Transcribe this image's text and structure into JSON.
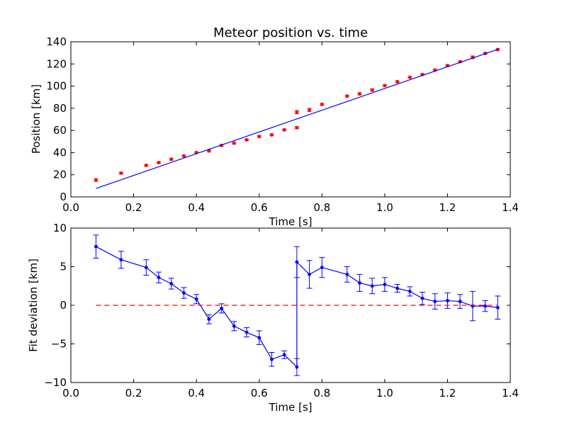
{
  "chart_data": [
    {
      "type": "scatter",
      "title": "Meteor position vs. time",
      "xlabel": "Time [s]",
      "ylabel": "Position [km]",
      "xlim": [
        0.0,
        1.4
      ],
      "ylim": [
        0,
        140
      ],
      "xticks": [
        "0.0",
        "0.2",
        "0.4",
        "0.6",
        "0.8",
        "1.0",
        "1.2",
        "1.4"
      ],
      "yticks": [
        "0",
        "20",
        "40",
        "60",
        "80",
        "100",
        "120",
        "140"
      ],
      "xtick_values": [
        0.0,
        0.2,
        0.4,
        0.6,
        0.8,
        1.0,
        1.2,
        1.4
      ],
      "ytick_values": [
        0,
        20,
        40,
        60,
        80,
        100,
        120,
        140
      ],
      "grid": false,
      "series": [
        {
          "kind": "errorbar-points",
          "color": "#ff0000",
          "x": [
            0.08,
            0.16,
            0.24,
            0.28,
            0.32,
            0.36,
            0.4,
            0.44,
            0.48,
            0.52,
            0.56,
            0.6,
            0.64,
            0.68,
            0.72,
            0.72,
            0.76,
            0.8,
            0.88,
            0.92,
            0.96,
            1.0,
            1.04,
            1.08,
            1.12,
            1.16,
            1.2,
            1.24,
            1.28,
            1.32,
            1.36
          ],
          "y": [
            15.2,
            21.5,
            28.5,
            31.0,
            34.0,
            37.0,
            40.0,
            41.5,
            46.5,
            48.5,
            51.5,
            54.5,
            56.0,
            60.5,
            62.5,
            76.5,
            78.5,
            83.5,
            91.0,
            93.0,
            96.5,
            100.5,
            104.0,
            108.0,
            110.5,
            114.5,
            118.5,
            122.0,
            126.0,
            129.5,
            133.0
          ],
          "err": [
            1.2,
            0.8,
            0.8,
            0.7,
            0.8,
            0.7,
            0.6,
            0.8,
            0.7,
            0.7,
            0.7,
            0.8,
            0.8,
            0.7,
            1.0,
            1.5,
            1.4,
            0.9,
            0.8,
            1.0,
            1.0,
            0.8,
            0.7,
            0.6,
            0.6,
            0.8,
            0.8,
            0.7,
            1.2,
            0.8,
            1.0
          ]
        },
        {
          "kind": "line",
          "color": "#0000ff",
          "x": [
            0.08,
            1.36
          ],
          "y": [
            7.6,
            133.2
          ]
        }
      ]
    },
    {
      "type": "line",
      "title": "",
      "xlabel": "Time [s]",
      "ylabel": "Fit deviation [km]",
      "xlim": [
        0.0,
        1.4
      ],
      "ylim": [
        -10,
        10
      ],
      "xticks": [
        "0.0",
        "0.2",
        "0.4",
        "0.6",
        "0.8",
        "1.0",
        "1.2",
        "1.4"
      ],
      "yticks": [
        "10",
        "5",
        "0",
        "−5",
        "−10"
      ],
      "xtick_values": [
        0.0,
        0.2,
        0.4,
        0.6,
        0.8,
        1.0,
        1.2,
        1.4
      ],
      "ytick_values": [
        10,
        5,
        0,
        -5,
        -10
      ],
      "grid": false,
      "series": [
        {
          "kind": "errorbar-line",
          "color": "#0000ff",
          "x": [
            0.08,
            0.16,
            0.24,
            0.28,
            0.32,
            0.36,
            0.4,
            0.44,
            0.48,
            0.52,
            0.56,
            0.6,
            0.64,
            0.68,
            0.72,
            0.72,
            0.76,
            0.8,
            0.88,
            0.92,
            0.96,
            1.0,
            1.04,
            1.08,
            1.12,
            1.16,
            1.2,
            1.24,
            1.28,
            1.32,
            1.36
          ],
          "y": [
            7.6,
            5.9,
            4.9,
            3.6,
            2.8,
            1.6,
            0.8,
            -1.8,
            -0.4,
            -2.7,
            -3.5,
            -4.2,
            -7.0,
            -6.4,
            -8.0,
            5.6,
            4.0,
            4.9,
            4.0,
            2.9,
            2.5,
            2.7,
            2.2,
            1.8,
            0.9,
            0.5,
            0.6,
            0.5,
            -0.1,
            -0.1,
            -0.3
          ],
          "err": [
            1.5,
            1.1,
            1.0,
            0.7,
            0.7,
            0.7,
            0.6,
            0.6,
            0.6,
            0.6,
            0.6,
            0.9,
            0.9,
            0.5,
            1.1,
            2.0,
            1.8,
            1.3,
            1.0,
            1.1,
            1.0,
            0.9,
            0.5,
            0.6,
            0.8,
            1.0,
            1.0,
            0.9,
            1.9,
            0.7,
            1.5
          ]
        },
        {
          "kind": "reference-line",
          "color": "#ff0000",
          "style": "dashed",
          "x": [
            0.08,
            1.36
          ],
          "y": [
            0,
            0
          ]
        }
      ]
    }
  ]
}
